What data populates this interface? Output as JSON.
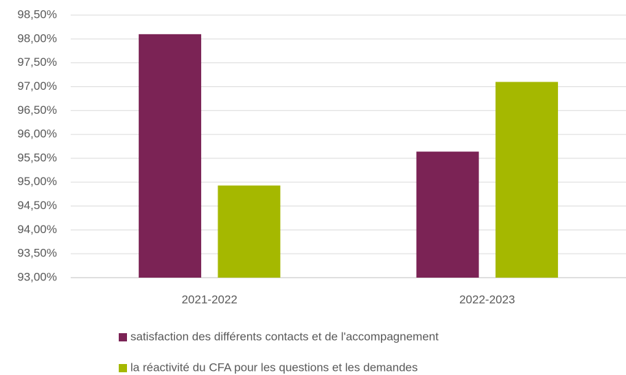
{
  "chart_data": {
    "type": "bar",
    "categories": [
      "2021-2022",
      "2022-2023"
    ],
    "series": [
      {
        "name": "satisfaction des différents contacts et de l'accompagnement",
        "color": "#7b2355",
        "values": [
          98.1,
          95.64
        ]
      },
      {
        "name": "la réactivité du CFA pour les questions et les demandes",
        "color": "#a5b800",
        "values": [
          94.93,
          97.1
        ]
      }
    ],
    "ylim": [
      93,
      98.5
    ],
    "yticks": [
      {
        "value": 93,
        "label": "93,00%"
      },
      {
        "value": 93.5,
        "label": "93,50%"
      },
      {
        "value": 94,
        "label": "94,00%"
      },
      {
        "value": 94.5,
        "label": "94,50%"
      },
      {
        "value": 95,
        "label": "95,00%"
      },
      {
        "value": 95.5,
        "label": "95,50%"
      },
      {
        "value": 96,
        "label": "96,00%"
      },
      {
        "value": 96.5,
        "label": "96,50%"
      },
      {
        "value": 97,
        "label": "97,00%"
      },
      {
        "value": 97.5,
        "label": "97,50%"
      },
      {
        "value": 98,
        "label": "98,00%"
      },
      {
        "value": 98.5,
        "label": "98,50%"
      }
    ],
    "grid": true,
    "legend": "bottom"
  }
}
